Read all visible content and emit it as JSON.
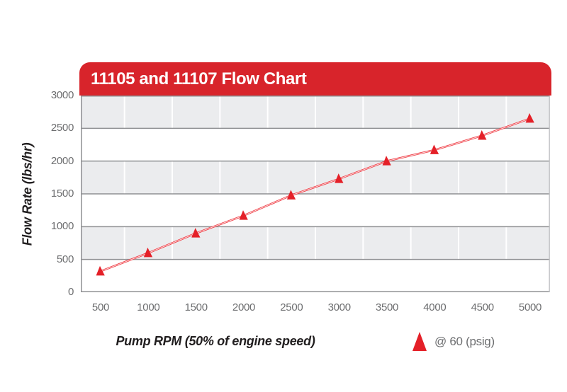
{
  "page": {
    "background_color": "#ffffff"
  },
  "header": {
    "title": "11105 and 11107 Flow Chart",
    "bar_color": "#d8242b",
    "text_color": "#ffffff"
  },
  "axes": {
    "y_title": "Flow Rate (lbs/hr)",
    "x_title": "Pump RPM (50% of engine speed)"
  },
  "legend": {
    "marker_icon": "triangle-up-icon",
    "marker_color": "#e42028",
    "label": "@ 60 (psig)"
  },
  "chart_data": {
    "type": "line",
    "title": "11105 and 11107 Flow Chart",
    "xlabel": "Pump RPM (50% of engine speed)",
    "ylabel": "Flow Rate (lbs/hr)",
    "x": [
      500,
      1000,
      1500,
      2000,
      2500,
      3000,
      3500,
      4000,
      4500,
      5000
    ],
    "series": [
      {
        "name": "@ 60 (psig)",
        "values": [
          320,
          600,
          900,
          1170,
          1480,
          1730,
          2000,
          2170,
          2390,
          2650
        ]
      }
    ],
    "xticklabels": [
      "500",
      "1000",
      "1500",
      "2000",
      "2500",
      "3000",
      "3500",
      "4000",
      "4500",
      "5000"
    ],
    "yticklabels_top_to_bottom": [
      "3000",
      "2500",
      "2000",
      "1500",
      "1000",
      "500",
      "0"
    ],
    "xlim": [
      290,
      5210
    ],
    "ylim": [
      0,
      3000
    ],
    "ytick_step": 500,
    "grid": "horizontal-dark, vertical-white-between-categories, alternating-bands",
    "legend_position": "bottom-right",
    "band_colors": [
      "#ebecee",
      "#ffffff"
    ],
    "hgrid_color": "#8f9093",
    "vgrid_color": "#ffffff",
    "right_border_color": "#c6c7c9",
    "line_color": "#ef3f47",
    "line_core_color": "#ffffff",
    "marker": "triangle-up",
    "marker_color": "#e42028"
  }
}
